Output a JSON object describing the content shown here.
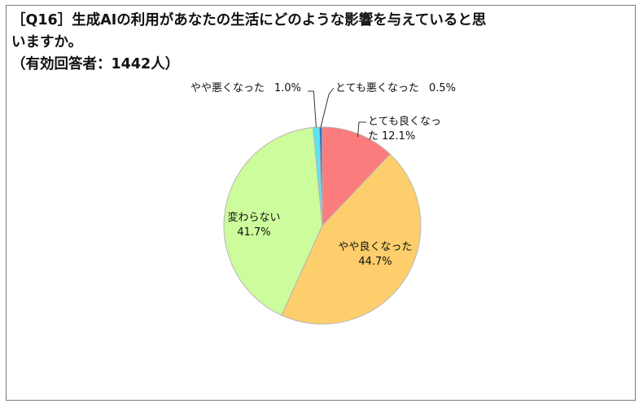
{
  "title_lines": [
    "［Q16］生成AIの利用があなたの生活にどのような影響を与えていると思",
    "いますか。",
    "（有効回答者：1442人）"
  ],
  "chart_data": {
    "type": "pie",
    "slices": [
      {
        "label": "とても良くなった",
        "value": 12.1,
        "display": "12.1%",
        "color": "#fb7c7c"
      },
      {
        "label": "やや良くなった",
        "value": 44.7,
        "display": "44.7%",
        "color": "#fcce6c"
      },
      {
        "label": "変わらない",
        "value": 41.7,
        "display": "41.7%",
        "color": "#ccfc9c"
      },
      {
        "label": "やや悪くなった",
        "value": 1.0,
        "display": "1.0%",
        "color": "#5ce4f4"
      },
      {
        "label": "とても悪くなった",
        "value": 0.5,
        "display": "0.5%",
        "color": "#3b6fbf"
      }
    ],
    "start": "12 o'clock",
    "direction": "clockwise",
    "legend": "none",
    "labels": "outside with leader lines for small slices"
  }
}
